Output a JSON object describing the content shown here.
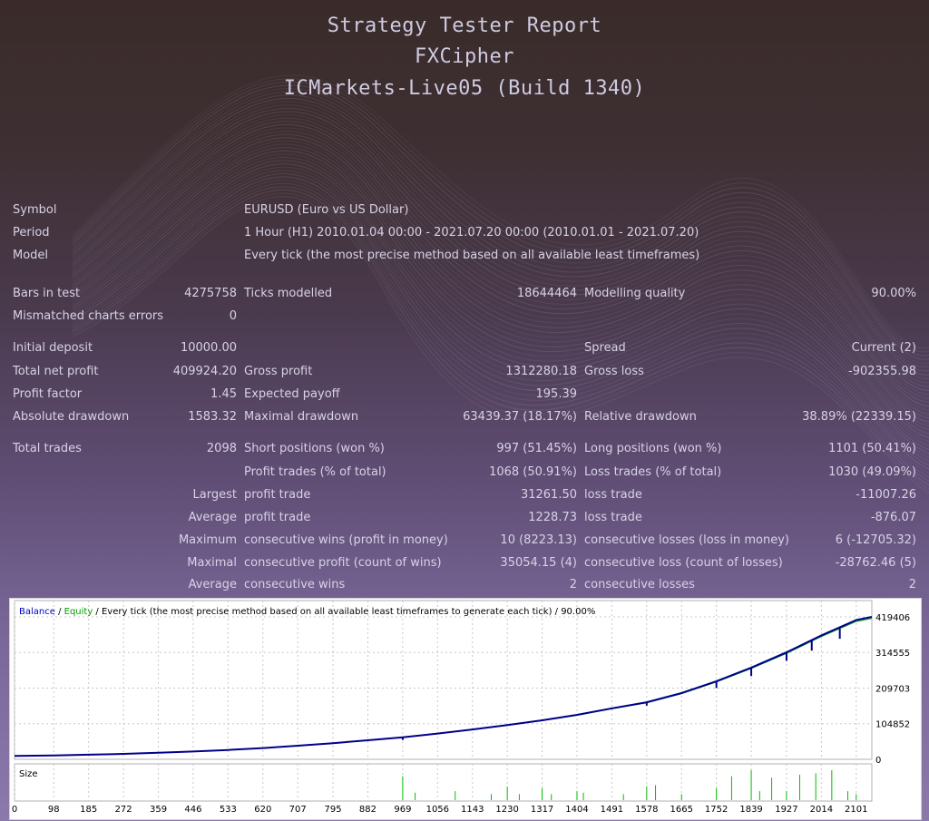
{
  "header": {
    "title": "Strategy Tester Report",
    "expert": "FXCipher",
    "server": "ICMarkets-Live05 (Build 1340)"
  },
  "report": {
    "symbol_label": "Symbol",
    "symbol_value": "EURUSD (Euro vs US Dollar)",
    "period_label": "Period",
    "period_value": "1 Hour (H1) 2010.01.04 00:00 - 2021.07.20 00:00 (2010.01.01 - 2021.07.20)",
    "model_label": "Model",
    "model_value": "Every tick (the most precise method based on all available least timeframes)",
    "bars_label": "Bars in test",
    "bars_value": "4275758",
    "ticks_label": "Ticks modelled",
    "ticks_value": "18644464",
    "quality_label": "Modelling quality",
    "quality_value": "90.00%",
    "mismatch_label": "Mismatched charts errors",
    "mismatch_value": "0",
    "deposit_label": "Initial deposit",
    "deposit_value": "10000.00",
    "spread_label": "Spread",
    "spread_value": "Current (2)",
    "netprofit_label": "Total net profit",
    "netprofit_value": "409924.20",
    "grossprofit_label": "Gross profit",
    "grossprofit_value": "1312280.18",
    "grossloss_label": "Gross loss",
    "grossloss_value": "-902355.98",
    "pf_label": "Profit factor",
    "pf_value": "1.45",
    "payoff_label": "Expected payoff",
    "payoff_value": "195.39",
    "absdd_label": "Absolute drawdown",
    "absdd_value": "1583.32",
    "maxdd_label": "Maximal drawdown",
    "maxdd_value": "63439.37 (18.17%)",
    "reldd_label": "Relative drawdown",
    "reldd_value": "38.89% (22339.15)",
    "trades_label": "Total trades",
    "trades_value": "2098",
    "short_label": "Short positions (won %)",
    "short_value": "997 (51.45%)",
    "long_label": "Long positions (won %)",
    "long_value": "1101 (50.41%)",
    "ptrades_label": "Profit trades (% of total)",
    "ptrades_value": "1068 (50.91%)",
    "ltrades_label": "Loss trades (% of total)",
    "ltrades_value": "1030 (49.09%)",
    "largest_label": "Largest",
    "largest_profit_label": "profit trade",
    "largest_profit_value": "31261.50",
    "largest_loss_label": "loss trade",
    "largest_loss_value": "-11007.26",
    "average_label": "Average",
    "average_profit_label": "profit trade",
    "average_profit_value": "1228.73",
    "average_loss_label": "loss trade",
    "average_loss_value": "-876.07",
    "maximum_label": "Maximum",
    "max_wins_label": "consecutive wins (profit in money)",
    "max_wins_value": "10 (8223.13)",
    "max_losses_label": "consecutive losses (loss in money)",
    "max_losses_value": "6 (-12705.32)",
    "maximal_label": "Maximal",
    "maximal_profit_label": "consecutive profit (count of wins)",
    "maximal_profit_value": "35054.15 (4)",
    "maximal_loss_label": "consecutive loss (count of losses)",
    "maximal_loss_value": "-28762.46 (5)",
    "average2_label": "Average",
    "avg_wins_label": "consecutive wins",
    "avg_wins_value": "2",
    "avg_losses_label": "consecutive losses",
    "avg_losses_value": "2"
  },
  "chart_data": {
    "type": "line",
    "legend": {
      "balance": "Balance",
      "sep1": " / ",
      "equity": "Equity",
      "rest": " / Every tick (the most precise method based on all available least timeframes to generate each tick) / 90.00%"
    },
    "colors": {
      "balance": "#00008b",
      "equity": "#00a000",
      "volume": "#00c000",
      "grid": "#c8c8c8"
    },
    "ylim": [
      0,
      419406
    ],
    "y_ticks": [
      "419406",
      "314555",
      "209703",
      "104852",
      "0"
    ],
    "y_tick_values": [
      419406,
      314555,
      209703,
      104852,
      0
    ],
    "x_ticks": [
      "0",
      "98",
      "185",
      "272",
      "359",
      "446",
      "533",
      "620",
      "707",
      "795",
      "882",
      "969",
      "1056",
      "1143",
      "1230",
      "1317",
      "1404",
      "1491",
      "1578",
      "1665",
      "1752",
      "1839",
      "1927",
      "2014",
      "2101"
    ],
    "xlim": [
      0,
      2140
    ],
    "sub_label": "Size",
    "series": [
      {
        "name": "Balance",
        "x": [
          0,
          98,
          185,
          272,
          359,
          446,
          533,
          620,
          707,
          795,
          882,
          969,
          1056,
          1143,
          1230,
          1317,
          1404,
          1491,
          1578,
          1665,
          1752,
          1839,
          1927,
          2014,
          2101,
          2140
        ],
        "values": [
          10000,
          11500,
          13500,
          16000,
          19500,
          23000,
          27500,
          33000,
          40000,
          47500,
          56000,
          65000,
          76000,
          88000,
          101000,
          115000,
          131000,
          150000,
          168000,
          195000,
          230000,
          270000,
          315000,
          365000,
          410000,
          419406
        ]
      }
    ],
    "drawdown_spikes": [
      {
        "x": 969,
        "values": [
          65000,
          57000
        ]
      },
      {
        "x": 1578,
        "values": [
          168000,
          158000
        ]
      },
      {
        "x": 1752,
        "values": [
          230000,
          210000
        ]
      },
      {
        "x": 1839,
        "values": [
          270000,
          245000
        ]
      },
      {
        "x": 1927,
        "values": [
          315000,
          290000
        ]
      },
      {
        "x": 1990,
        "values": [
          350000,
          320000
        ]
      },
      {
        "x": 2060,
        "values": [
          385000,
          355000
        ]
      }
    ],
    "volume_bars": [
      {
        "x": 969,
        "v": 0.8
      },
      {
        "x": 1000,
        "v": 0.25
      },
      {
        "x": 1100,
        "v": 0.3
      },
      {
        "x": 1190,
        "v": 0.2
      },
      {
        "x": 1230,
        "v": 0.45
      },
      {
        "x": 1260,
        "v": 0.2
      },
      {
        "x": 1317,
        "v": 0.4
      },
      {
        "x": 1340,
        "v": 0.2
      },
      {
        "x": 1404,
        "v": 0.3
      },
      {
        "x": 1420,
        "v": 0.25
      },
      {
        "x": 1520,
        "v": 0.2
      },
      {
        "x": 1578,
        "v": 0.45
      },
      {
        "x": 1600,
        "v": 0.5
      },
      {
        "x": 1665,
        "v": 0.2
      },
      {
        "x": 1752,
        "v": 0.4
      },
      {
        "x": 1790,
        "v": 0.8
      },
      {
        "x": 1839,
        "v": 1.0
      },
      {
        "x": 1860,
        "v": 0.3
      },
      {
        "x": 1890,
        "v": 0.75
      },
      {
        "x": 1927,
        "v": 0.3
      },
      {
        "x": 1960,
        "v": 0.85
      },
      {
        "x": 2000,
        "v": 0.9
      },
      {
        "x": 2040,
        "v": 1.0
      },
      {
        "x": 2080,
        "v": 0.3
      },
      {
        "x": 2101,
        "v": 0.2
      }
    ]
  }
}
